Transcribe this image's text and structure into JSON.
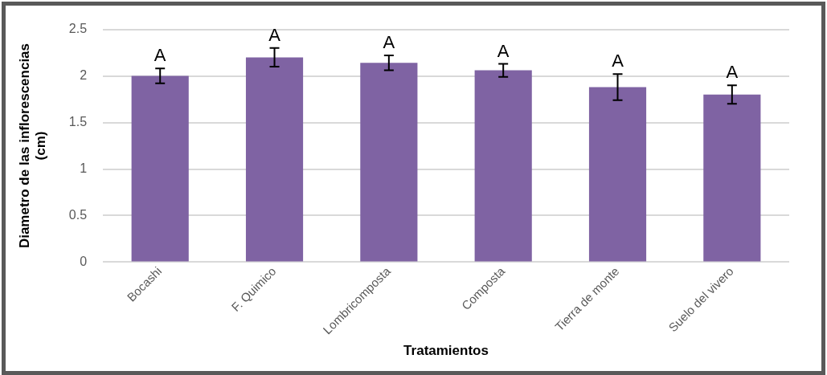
{
  "chart_data": {
    "type": "bar",
    "xlabel": "Tratamientos",
    "ylabel": "Diametro de las inflorescencias (cm)",
    "categories": [
      "Bocashi",
      "F. Quimico",
      "Lombricomposta",
      "Composta",
      "Tierra de monte",
      "Suelo del vivero"
    ],
    "values": [
      2.0,
      2.2,
      2.14,
      2.06,
      1.88,
      1.8
    ],
    "errors": [
      0.08,
      0.1,
      0.08,
      0.07,
      0.14,
      0.1
    ],
    "color": "#7f63a3",
    "ylim": [
      0,
      2.5
    ],
    "yticks": [
      0,
      0.5,
      1,
      1.5,
      2,
      2.5
    ],
    "grid": "y",
    "annotations": [
      {
        "text": "A",
        "x": "Bocashi",
        "y": 2.08
      },
      {
        "text": "A",
        "x": "F. Quimico",
        "y": 2.3
      },
      {
        "text": "A",
        "x": "Lombricomposta",
        "y": 2.22
      },
      {
        "text": "A",
        "x": "Composta",
        "y": 2.13
      },
      {
        "text": "A",
        "x": "Tierra de monte",
        "y": 2.02
      },
      {
        "text": "A",
        "x": "Suelo del vivero",
        "y": 1.9
      }
    ]
  }
}
